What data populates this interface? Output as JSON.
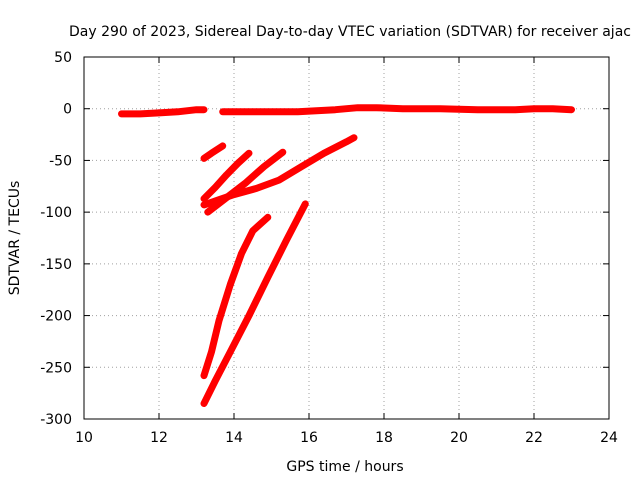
{
  "chart_data": {
    "type": "line",
    "title": "Day 290 of 2023, Sidereal Day-to-day VTEC variation (SDTVAR) for receiver ajac",
    "xlabel": "GPS time / hours",
    "ylabel": "SDTVAR / TECUs",
    "xlim": [
      10,
      24
    ],
    "ylim": [
      -300,
      50
    ],
    "xticks": [
      10,
      12,
      14,
      16,
      18,
      20,
      22,
      24
    ],
    "yticks": [
      -300,
      -250,
      -200,
      -150,
      -100,
      -50,
      0,
      50
    ],
    "grid": true,
    "color": "#ff0000",
    "series": [
      {
        "x": [
          11.0,
          11.5,
          12.0,
          12.5,
          13.0,
          13.2
        ],
        "y": [
          -5,
          -5,
          -4,
          -3,
          -1,
          -1
        ]
      },
      {
        "x": [
          13.7,
          14.2,
          14.7,
          15.2,
          15.7,
          16.2,
          16.7,
          17.0,
          17.3,
          17.8,
          18.5,
          19.5,
          20.5,
          21.5,
          22.0,
          22.5,
          23.0
        ],
        "y": [
          -3,
          -3,
          -3,
          -3,
          -3,
          -2,
          -1,
          0,
          1,
          1,
          0,
          0,
          -1,
          -1,
          0,
          0,
          -1
        ]
      },
      {
        "x": [
          13.2,
          13.4,
          13.7
        ],
        "y": [
          -48,
          -43,
          -36
        ]
      },
      {
        "x": [
          13.2,
          13.5,
          13.8,
          14.1,
          14.4
        ],
        "y": [
          -87,
          -76,
          -64,
          -53,
          -43
        ]
      },
      {
        "x": [
          13.3,
          13.8,
          14.3,
          14.8,
          15.3
        ],
        "y": [
          -100,
          -86,
          -72,
          -56,
          -42
        ]
      },
      {
        "x": [
          13.2,
          13.6,
          14.0,
          14.6,
          15.2,
          15.8,
          16.4,
          17.0,
          17.2
        ],
        "y": [
          -93,
          -88,
          -83,
          -77,
          -69,
          -56,
          -43,
          -32,
          -28
        ]
      },
      {
        "x": [
          13.2,
          13.4,
          13.6,
          13.9,
          14.2,
          14.5,
          14.9
        ],
        "y": [
          -258,
          -235,
          -205,
          -170,
          -140,
          -118,
          -105
        ]
      },
      {
        "x": [
          13.2,
          13.5,
          13.9,
          14.4,
          14.9,
          15.4,
          15.9
        ],
        "y": [
          -285,
          -263,
          -235,
          -200,
          -163,
          -127,
          -92
        ]
      }
    ]
  }
}
